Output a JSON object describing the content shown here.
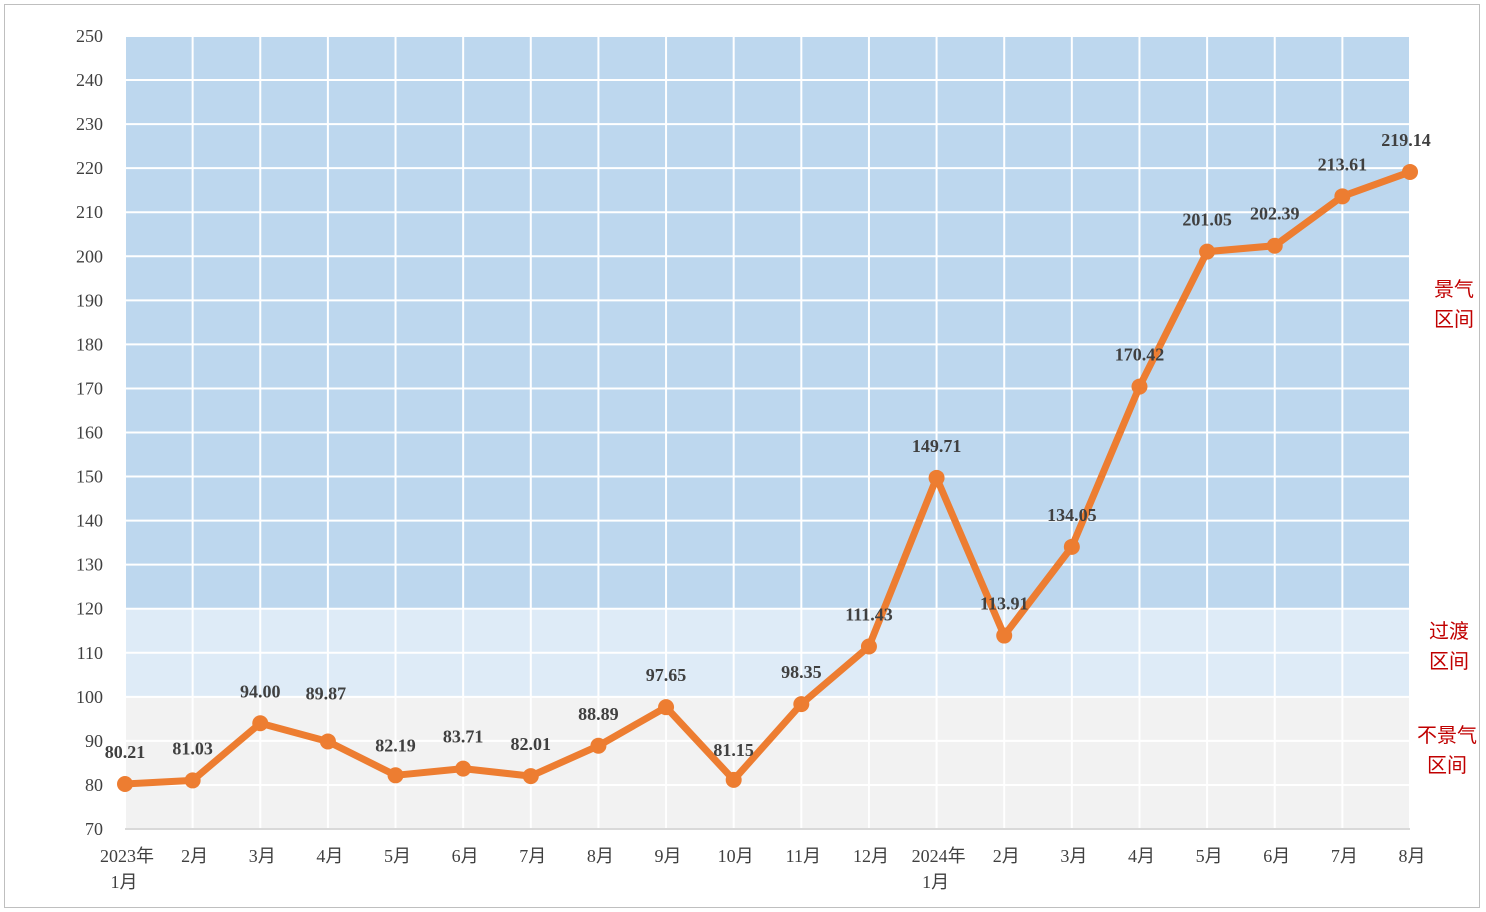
{
  "chart_data": {
    "type": "line",
    "categories": [
      [
        "2023年",
        "1月"
      ],
      [
        "2月"
      ],
      [
        "3月"
      ],
      [
        "4月"
      ],
      [
        "5月"
      ],
      [
        "6月"
      ],
      [
        "7月"
      ],
      [
        "8月"
      ],
      [
        "9月"
      ],
      [
        "10月"
      ],
      [
        "11月"
      ],
      [
        "12月"
      ],
      [
        "2024年",
        "1月"
      ],
      [
        "2月"
      ],
      [
        "3月"
      ],
      [
        "4月"
      ],
      [
        "5月"
      ],
      [
        "6月"
      ],
      [
        "7月"
      ],
      [
        "8月"
      ]
    ],
    "series": [
      {
        "values": [
          80.21,
          81.03,
          94.0,
          89.87,
          82.19,
          83.71,
          82.01,
          88.89,
          97.65,
          81.15,
          98.35,
          111.43,
          149.71,
          113.91,
          134.05,
          170.42,
          201.05,
          202.39,
          213.61,
          219.14
        ],
        "labels": [
          "80.21",
          "81.03",
          "94.00",
          "89.87",
          "82.19",
          "83.71",
          "82.01",
          "88.89",
          "97.65",
          "81.15",
          "98.35",
          "111.43",
          "149.71",
          "113.91",
          "134.05",
          "170.42",
          "201.05",
          "202.39",
          "213.61",
          "219.14"
        ],
        "color": "#ed7d31"
      }
    ],
    "ylim": [
      70,
      250
    ],
    "yticks": [
      70,
      80,
      90,
      100,
      110,
      120,
      130,
      140,
      150,
      160,
      170,
      180,
      190,
      200,
      210,
      220,
      230,
      240,
      250
    ],
    "grid": true,
    "zones": [
      {
        "from": 70,
        "to": 100,
        "label": [
          "不景气",
          "区间"
        ],
        "color": "#f2f2f2"
      },
      {
        "from": 100,
        "to": 120,
        "label": [
          "过渡",
          "区间"
        ],
        "color": "#deebf7"
      },
      {
        "from": 120,
        "to": 250,
        "label": [
          "景气",
          "区间"
        ],
        "color": "#bdd7ee"
      }
    ],
    "zone_label_color": "#c00000",
    "label_color": "#404040"
  }
}
